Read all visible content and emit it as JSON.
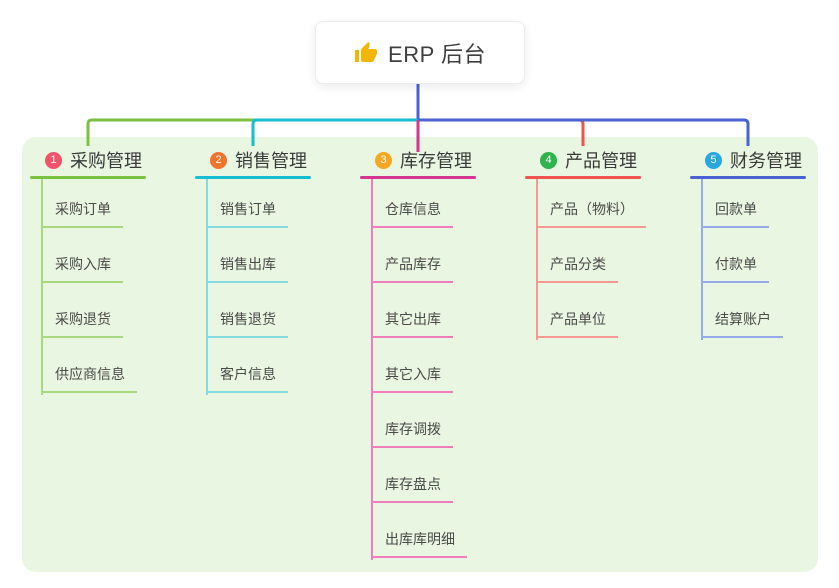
{
  "root": {
    "title": "ERP 后台",
    "icon": "thumbs-up-icon",
    "icon_color": "#F2B705"
  },
  "colors": {
    "page_bg": "#ffffff",
    "panel_bg": "#E9F6E2",
    "root_connector": "#4A63D1",
    "header_text": "#3a3a3a",
    "child_text": "#4a4a4a"
  },
  "branches": [
    {
      "index": "1",
      "label": "采购管理",
      "badge_color": "#F1556C",
      "line_color": "#7CC242",
      "child_line_color": "#A9D87E",
      "children": [
        "采购订单",
        "采购入库",
        "采购退货",
        "供应商信息"
      ]
    },
    {
      "index": "2",
      "label": "销售管理",
      "badge_color": "#F0742C",
      "line_color": "#17BECF",
      "child_line_color": "#85DAE0",
      "children": [
        "销售订单",
        "销售出库",
        "销售退货",
        "客户信息"
      ]
    },
    {
      "index": "3",
      "label": "库存管理",
      "badge_color": "#F5A623",
      "line_color": "#D6368F",
      "child_line_color": "#EE7FBC",
      "children": [
        "仓库信息",
        "产品库存",
        "其它出库",
        "其它入库",
        "库存调拨",
        "库存盘点",
        "出库库明细"
      ]
    },
    {
      "index": "4",
      "label": "产品管理",
      "badge_color": "#2FB34C",
      "line_color": "#EF534E",
      "child_line_color": "#F69893",
      "children": [
        "产品（物料）",
        "产品分类",
        "产品单位"
      ]
    },
    {
      "index": "5",
      "label": "财务管理",
      "badge_color": "#28A7E0",
      "line_color": "#4A63D1",
      "child_line_color": "#97A9E8",
      "children": [
        "回款单",
        "付款单",
        "结算账户"
      ]
    }
  ]
}
